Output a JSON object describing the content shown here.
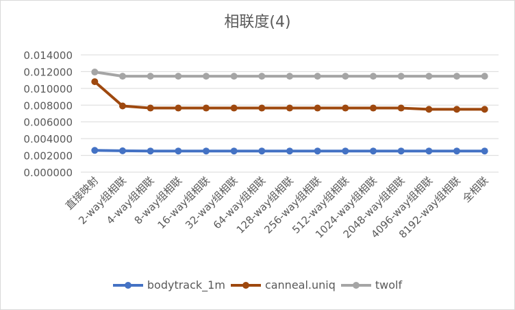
{
  "chart_data": {
    "type": "line",
    "title": "相联度(4)",
    "categories": [
      "直接映射",
      "2-way组相联",
      "4-way组相联",
      "8-way组相联",
      "16-way组相联",
      "32-way组相联",
      "64-way组相联",
      "128-way组相联",
      "256-way组相联",
      "512-way组相联",
      "1024-way组相联",
      "2048-way组相联",
      "4096-way组相联",
      "8192-way组相联",
      "全相联"
    ],
    "ylim": [
      0,
      0.014
    ],
    "yticks": [
      "0.000000",
      "0.002000",
      "0.004000",
      "0.006000",
      "0.008000",
      "0.010000",
      "0.012000",
      "0.014000"
    ],
    "grid": true,
    "legend_position": "bottom",
    "series": [
      {
        "name": "bodytrack_1m",
        "color": "#4472c4",
        "values": [
          0.0026,
          0.00255,
          0.00252,
          0.00252,
          0.00252,
          0.00252,
          0.00252,
          0.00252,
          0.00252,
          0.00252,
          0.00252,
          0.00252,
          0.00252,
          0.00252,
          0.00252
        ]
      },
      {
        "name": "canneal.uniq",
        "color": "#9e480e",
        "values": [
          0.0108,
          0.0079,
          0.00765,
          0.00765,
          0.00765,
          0.00765,
          0.00765,
          0.00765,
          0.00765,
          0.00765,
          0.00765,
          0.00765,
          0.0075,
          0.0075,
          0.0075
        ]
      },
      {
        "name": "twolf",
        "color": "#a5a5a5",
        "values": [
          0.01195,
          0.01145,
          0.01145,
          0.01145,
          0.01145,
          0.01145,
          0.01145,
          0.01145,
          0.01145,
          0.01145,
          0.01145,
          0.01145,
          0.01145,
          0.01145,
          0.01145
        ]
      }
    ]
  }
}
